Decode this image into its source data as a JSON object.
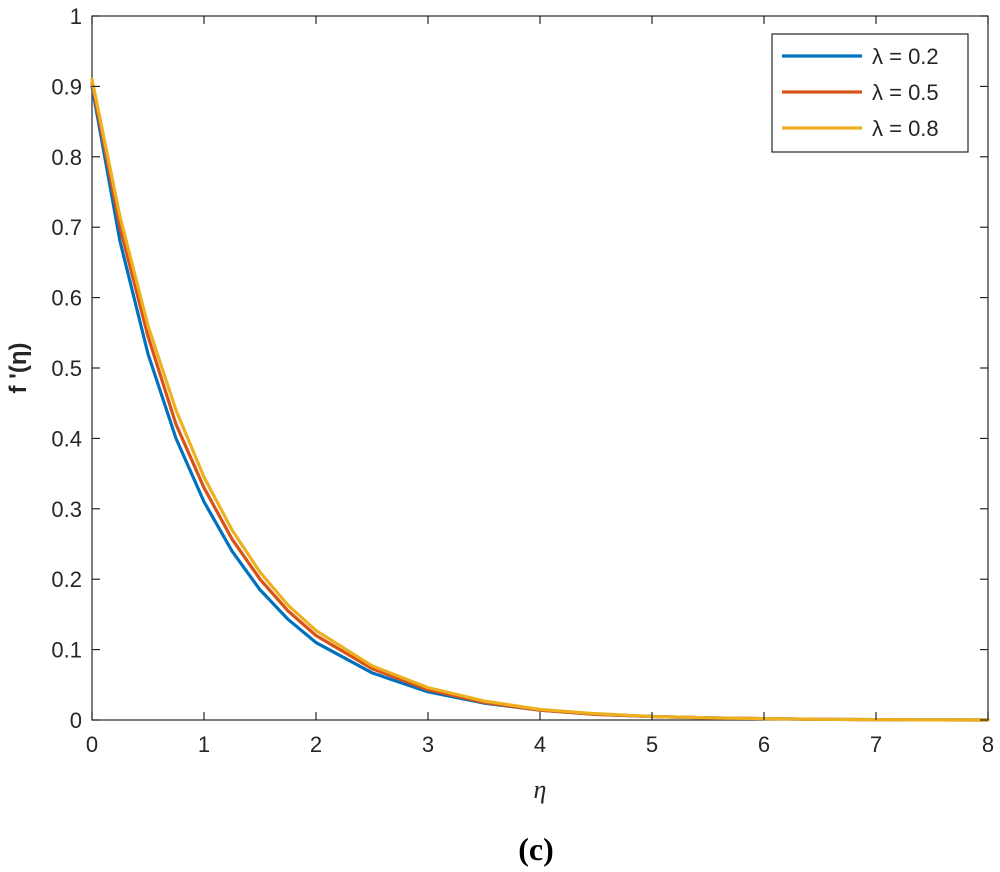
{
  "chart_data": {
    "type": "line",
    "xlabel": "η",
    "ylabel": "f '(η)",
    "caption": "(c)",
    "xlim": [
      0,
      8
    ],
    "ylim": [
      0,
      1
    ],
    "xticks": [
      "0",
      "1",
      "2",
      "3",
      "4",
      "5",
      "6",
      "7",
      "8"
    ],
    "yticks": [
      "0",
      "0.1",
      "0.2",
      "0.3",
      "0.4",
      "0.5",
      "0.6",
      "0.7",
      "0.8",
      "0.9",
      "1"
    ],
    "grid": false,
    "legend_position": "top-right",
    "x": [
      0,
      0.25,
      0.5,
      0.75,
      1,
      1.25,
      1.5,
      1.75,
      2,
      2.5,
      3,
      3.5,
      4,
      4.5,
      5,
      5.5,
      6,
      6.5,
      7,
      7.5,
      8
    ],
    "series": [
      {
        "name": "λ = 0.2",
        "color": "#0072BD",
        "values": [
          0.9,
          0.68,
          0.52,
          0.4,
          0.31,
          0.24,
          0.185,
          0.143,
          0.11,
          0.067,
          0.04,
          0.024,
          0.014,
          0.008,
          0.005,
          0.003,
          0.002,
          0.001,
          0.0005,
          0.0002,
          0.0
        ]
      },
      {
        "name": "λ = 0.5",
        "color": "#D95319",
        "values": [
          0.905,
          0.7,
          0.545,
          0.42,
          0.33,
          0.257,
          0.2,
          0.155,
          0.12,
          0.073,
          0.043,
          0.025,
          0.014,
          0.008,
          0.005,
          0.003,
          0.002,
          0.001,
          0.0005,
          0.0002,
          0.0
        ]
      },
      {
        "name": "λ = 0.8",
        "color": "#EDB120",
        "values": [
          0.91,
          0.715,
          0.56,
          0.44,
          0.345,
          0.27,
          0.21,
          0.163,
          0.127,
          0.077,
          0.046,
          0.027,
          0.015,
          0.009,
          0.005,
          0.003,
          0.002,
          0.001,
          0.0005,
          0.0002,
          0.0
        ]
      }
    ]
  }
}
